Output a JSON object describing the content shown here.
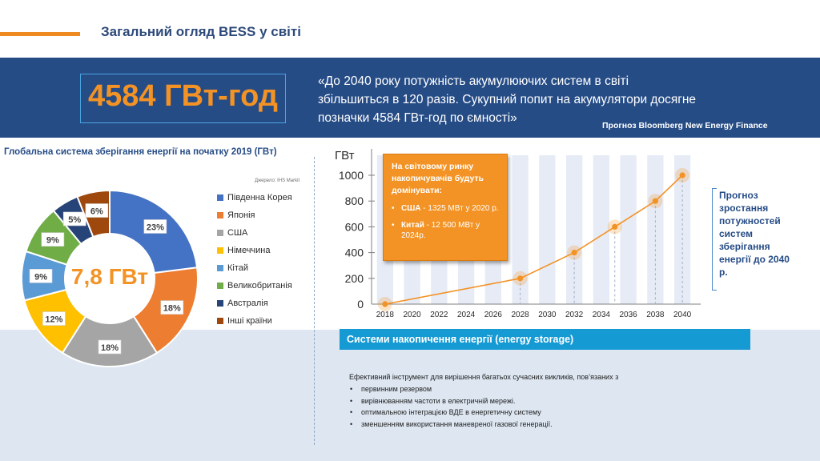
{
  "header": {
    "title": "Загальний огляд BESS у світі"
  },
  "banner": {
    "stat": "4584 ГВт-год",
    "quote": "«До 2040 року потужність акумулюючих систем в світі збільшиться в 120 разів. Сукупний попит на акумулятори досягне позначки 4584 ГВт-год по ємності»",
    "quote_source": "Прогноз Bloomberg New Energy Finance"
  },
  "donut": {
    "title": "Глобальна система зберігання енергії на початку 2019 (ГВт)",
    "source": "Джерело: IHS Markit",
    "center_label": "7,8 ГВт"
  },
  "line": {
    "y_unit": "ГВт",
    "callout": {
      "title": "На світовому ринку накопичувачів будуть домінувати:",
      "items": [
        {
          "country": "США",
          "text": " - 1325 МВт у 2020 р."
        },
        {
          "country": "Китай",
          "text": " - 12 500 МВт у 2024р."
        }
      ]
    },
    "forecast_note": "Прогноз зростання потужностей систем зберігання енергії до 2040 р."
  },
  "storage": {
    "heading": "Системи накопичення енергії (energy storage)",
    "intro": "Ефективний інструмент для вирішення багатьох сучасних викликів, пов’язаних з",
    "items": [
      "первинним резервом",
      "вирівнюванням частоти в електричній мережі.",
      "оптимальною інтеграцією ВДЕ в енергетичну систему",
      "зменшенням використання маневреної газової генерації."
    ]
  },
  "chart_data": [
    {
      "type": "pie",
      "title": "Глобальна система зберігання енергії на початку 2019 (ГВт)",
      "total_label": "7,8 ГВт",
      "categories": [
        "Південна Корея",
        "Японія",
        "США",
        "Німеччина",
        "Кітай",
        "Великобританія",
        "Австралія",
        "Інші країни"
      ],
      "values": [
        23,
        18,
        18,
        12,
        9,
        9,
        5,
        6
      ],
      "value_labels": [
        "23%",
        "18%",
        "18%",
        "12%",
        "9%",
        "9%",
        "5%",
        "6%"
      ],
      "colors": [
        "#4472c4",
        "#ed7d31",
        "#a5a5a5",
        "#ffc000",
        "#5b9bd5",
        "#70ad47",
        "#264478",
        "#9e480e"
      ],
      "legend": "right"
    },
    {
      "type": "line",
      "ylabel": "ГВт",
      "x": [
        2018,
        2028,
        2032,
        2035,
        2038,
        2040
      ],
      "values": [
        0,
        200,
        400,
        600,
        800,
        1000
      ],
      "x_ticks": [
        2018,
        2020,
        2022,
        2024,
        2026,
        2028,
        2030,
        2032,
        2034,
        2036,
        2038,
        2040
      ],
      "y_ticks": [
        0,
        200,
        400,
        600,
        800,
        1000
      ],
      "xlim": [
        2017,
        2041
      ],
      "ylim": [
        0,
        1000
      ],
      "color": "#f39325"
    }
  ]
}
